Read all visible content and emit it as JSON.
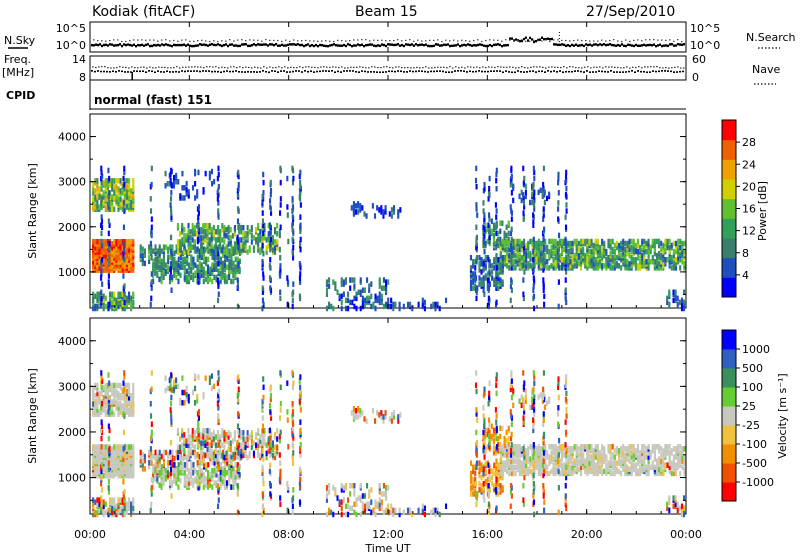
{
  "header": {
    "station": "Kodiak (fitACF)",
    "beam": "Beam 15",
    "date": "27/Sep/2010"
  },
  "left_labels": {
    "nsky": "N.Sky",
    "freq": "Freq.",
    "freq_unit": "[MHz]",
    "cpid": "CPID"
  },
  "right_labels": {
    "nsearch": "N.Search",
    "nave": "Nave"
  },
  "cpid_text": "normal (fast) 151",
  "colors": {
    "power": [
      "#0000ff",
      "#1f4fbf",
      "#3a7f6e",
      "#33a05a",
      "#60c030",
      "#d0d000",
      "#f0a000",
      "#f06000",
      "#ff0000"
    ],
    "velocity": [
      "#ff0000",
      "#f05000",
      "#f09000",
      "#f0c040",
      "#c8c8be",
      "#66cc33",
      "#3a8f5a",
      "#2f5fbf",
      "#0000ff"
    ]
  },
  "chart_data": [
    {
      "type": "line",
      "xlim": [
        0,
        24
      ],
      "y_ticks": [
        "10^5",
        "10^0"
      ],
      "y2_ticks": [
        "10^5",
        "10^0"
      ],
      "series": [
        {
          "name": "N.Sky"
        },
        {
          "name": "N.Search"
        }
      ]
    },
    {
      "type": "scatter",
      "xlim": [
        0,
        24
      ],
      "ylim_left": [
        8,
        14
      ],
      "ylim_right": [
        0,
        60
      ],
      "y_ticks": [
        "14",
        "8"
      ],
      "y2_ticks": [
        "60",
        "0"
      ],
      "series": [
        {
          "name": "Freq."
        },
        {
          "name": "Nave"
        }
      ]
    },
    {
      "type": "heatmap",
      "ylabel": "Slant Range [km]",
      "ylim": [
        200,
        4500
      ],
      "yticks": [
        "4000",
        "3000",
        "2000",
        "1000"
      ],
      "colorbar_label": "Power [dB]",
      "colorbar_ticks": [
        "28",
        "24",
        "20",
        "16",
        "12",
        "8",
        "4"
      ],
      "colorbar_range": [
        0,
        32
      ]
    },
    {
      "type": "heatmap",
      "ylabel": "Slant Range [km]",
      "ylim": [
        200,
        4500
      ],
      "yticks": [
        "4000",
        "3000",
        "2000",
        "1000"
      ],
      "colorbar_label": "Velocity [m s⁻¹]",
      "colorbar_ticks": [
        "1000",
        "500",
        "100",
        "25",
        "-25",
        "-100",
        "-500",
        "-1000"
      ]
    }
  ],
  "x_axis": {
    "label": "Time UT",
    "xlim": [
      0,
      24
    ],
    "ticks": [
      "00:00",
      "04:00",
      "08:00",
      "12:00",
      "16:00",
      "20:00",
      "00:00"
    ]
  }
}
